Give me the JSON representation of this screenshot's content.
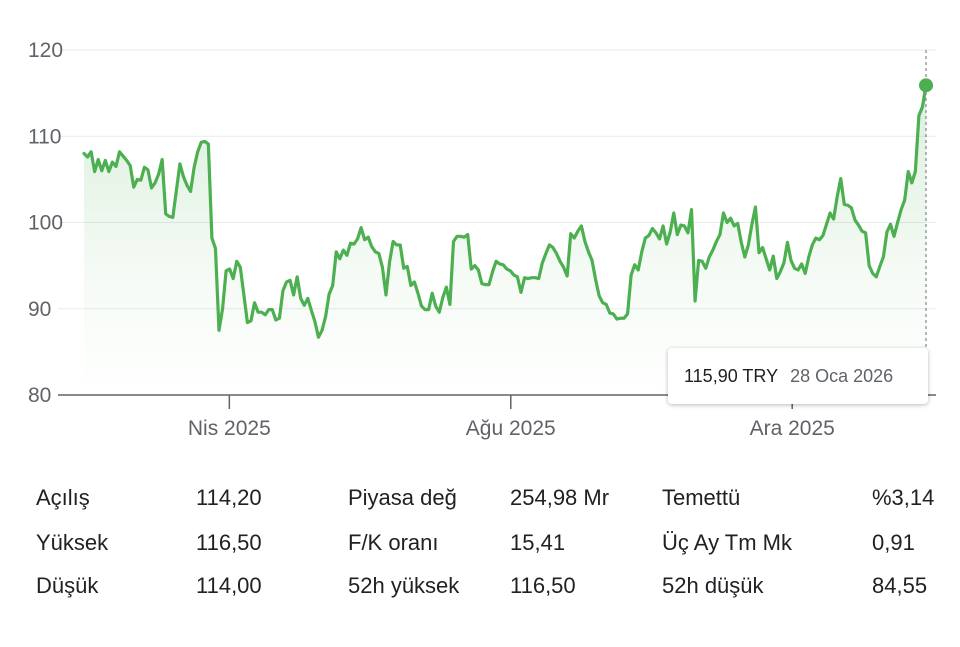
{
  "chart_data": {
    "type": "line",
    "title": "",
    "xlabel": "",
    "ylabel": "",
    "ylim": [
      80,
      120
    ],
    "yticks": [
      80,
      90,
      100,
      110,
      120
    ],
    "ytick_labels": [
      "80",
      "90",
      "100",
      "110",
      "120"
    ],
    "xticks": [
      "Nis 2025",
      "Ağu 2025",
      "Ara 2025"
    ],
    "grid": true,
    "line_color": "#4caf50",
    "fill_color": "#4caf50",
    "series": [
      {
        "values": [
          108.0,
          107.6,
          108.2,
          105.9,
          107.3,
          106.0,
          107.2,
          105.9,
          107.0,
          106.5,
          108.2,
          107.7,
          107.2,
          106.6,
          104.1,
          105.0,
          104.9,
          106.4,
          106.1,
          104.0,
          104.6,
          105.6,
          107.3,
          101.0,
          100.7,
          100.6,
          103.7,
          106.8,
          105.3,
          104.3,
          103.6,
          106.4,
          108.2,
          109.3,
          109.4,
          109.1,
          98.2,
          97.0,
          87.5,
          90.0,
          94.4,
          94.6,
          93.5,
          95.5,
          94.8,
          91.6,
          88.4,
          88.6,
          90.7,
          89.6,
          89.6,
          89.3,
          89.9,
          89.9,
          88.7,
          88.9,
          92.1,
          93.1,
          93.3,
          91.6,
          93.7,
          91.2,
          90.4,
          91.2,
          89.8,
          88.5,
          86.7,
          87.5,
          89.1,
          91.7,
          92.7,
          96.6,
          95.8,
          96.8,
          96.2,
          97.6,
          97.5,
          98.1,
          99.4,
          98.0,
          98.3,
          97.2,
          96.6,
          96.4,
          94.8,
          91.6,
          95.4,
          97.8,
          97.4,
          97.4,
          94.7,
          94.9,
          92.7,
          93.1,
          91.8,
          90.3,
          89.9,
          89.9,
          91.8,
          90.3,
          89.6,
          91.3,
          92.5,
          90.5,
          97.8,
          98.4,
          98.4,
          98.3,
          98.6,
          94.6,
          95.0,
          94.5,
          92.9,
          92.8,
          92.8,
          94.3,
          95.5,
          95.2,
          95.1,
          94.6,
          94.4,
          93.9,
          93.7,
          91.9,
          93.6,
          93.5,
          93.6,
          93.6,
          93.5,
          95.3,
          96.4,
          97.4,
          97.1,
          96.4,
          95.5,
          94.8,
          93.8,
          98.7,
          98.2,
          99.0,
          99.6,
          97.8,
          96.6,
          95.6,
          93.4,
          91.5,
          90.7,
          90.5,
          89.5,
          89.4,
          88.8,
          88.9,
          88.9,
          89.4,
          93.9,
          95.1,
          94.5,
          96.6,
          98.2,
          98.5,
          99.3,
          98.8,
          98.1,
          99.6,
          97.5,
          98.9,
          101.1,
          98.6,
          99.7,
          99.6,
          98.8,
          101.5,
          90.9,
          95.6,
          95.5,
          94.7,
          96.0,
          96.8,
          97.8,
          98.6,
          101.1,
          100.0,
          100.5,
          99.6,
          99.9,
          97.7,
          96.0,
          97.4,
          99.8,
          101.8,
          96.5,
          97.1,
          95.8,
          94.5,
          96.1,
          93.5,
          94.3,
          95.3,
          97.7,
          95.6,
          94.7,
          94.5,
          95.2,
          94.1,
          96.0,
          97.4,
          98.2,
          98.0,
          98.5,
          99.8,
          101.1,
          100.4,
          103.0,
          105.1,
          102.1,
          102.0,
          101.7,
          100.3,
          99.7,
          99.0,
          98.8,
          95.0,
          94.1,
          93.7,
          94.9,
          96.0,
          98.9,
          99.8,
          98.4,
          100.0,
          101.5,
          102.6,
          105.9,
          104.6,
          105.9,
          112.4,
          113.4,
          115.9
        ]
      }
    ],
    "x_range_start": "2025-01-28",
    "x_range_end": "2026-01-28",
    "highlight": {
      "value": 115.9,
      "value_label": "115,90 TRY",
      "date_label": "28 Oca 2026"
    }
  },
  "stats": {
    "columns": [
      [
        {
          "label": "Açılış",
          "value": "114,20"
        },
        {
          "label": "Yüksek",
          "value": "116,50"
        },
        {
          "label": "Düşük",
          "value": "114,00"
        }
      ],
      [
        {
          "label": "Piyasa değ",
          "value": "254,98 Mr"
        },
        {
          "label": "F/K oranı",
          "value": "15,41"
        },
        {
          "label": "52h yüksek",
          "value": "116,50"
        }
      ],
      [
        {
          "label": "Temettü",
          "value": "%3,14"
        },
        {
          "label": "Üç Ay Tm Mk",
          "value": "0,91"
        },
        {
          "label": "52h düşük",
          "value": "84,55"
        }
      ]
    ]
  }
}
